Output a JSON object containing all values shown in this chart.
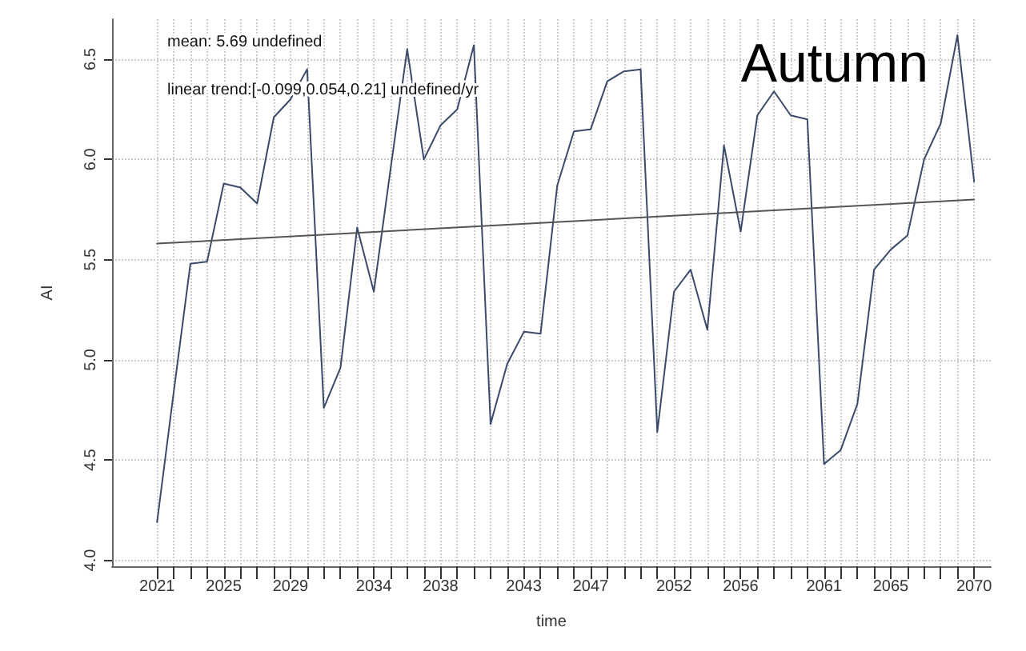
{
  "chart_data": {
    "type": "line",
    "title": "Autumn",
    "xlabel": "time",
    "ylabel": "AI",
    "annotations": [
      "mean: 5.69 undefined",
      "linear trend:[-0.099,0.054,0.21] undefined/yr"
    ],
    "x": [
      2021,
      2022,
      2023,
      2024,
      2025,
      2026,
      2027,
      2028,
      2029,
      2030,
      2031,
      2032,
      2033,
      2034,
      2035,
      2036,
      2037,
      2038,
      2039,
      2040,
      2041,
      2042,
      2043,
      2044,
      2045,
      2046,
      2047,
      2048,
      2049,
      2050,
      2051,
      2052,
      2053,
      2054,
      2055,
      2056,
      2057,
      2058,
      2059,
      2060,
      2061,
      2062,
      2063,
      2064,
      2065,
      2066,
      2067,
      2068,
      2069,
      2070
    ],
    "series": [
      {
        "color": "#3b4a6b",
        "values": [
          4.19,
          4.84,
          5.48,
          5.49,
          5.88,
          5.86,
          5.78,
          6.21,
          6.3,
          6.45,
          4.76,
          4.96,
          5.66,
          5.34,
          5.95,
          6.55,
          6.0,
          6.17,
          6.25,
          6.57,
          4.68,
          4.98,
          5.14,
          5.13,
          5.87,
          6.14,
          6.15,
          6.39,
          6.44,
          6.45,
          4.64,
          5.34,
          5.45,
          5.15,
          6.07,
          5.64,
          6.22,
          6.34,
          6.22,
          6.2,
          4.48,
          4.55,
          4.78,
          5.45,
          5.55,
          5.62,
          6.0,
          6.18,
          6.62,
          5.89
        ]
      },
      {
        "type": "line",
        "color": "#555555",
        "x": [
          2021,
          2070
        ],
        "values": [
          5.58,
          5.8
        ]
      }
    ],
    "xlim": [
      2018.3,
      2071
    ],
    "ylim": [
      3.97,
      6.7
    ],
    "xticks": [
      2021,
      {
        "value": 2022,
        "label": null
      },
      {
        "value": 2023,
        "label": null
      },
      {
        "value": 2024,
        "label": null
      },
      2025,
      {
        "value": 2026,
        "label": null
      },
      {
        "value": 2027,
        "label": null
      },
      {
        "value": 2028,
        "label": null
      },
      2029,
      {
        "value": 2030,
        "label": null
      },
      {
        "value": 2031,
        "label": null
      },
      {
        "value": 2032,
        "label": null
      },
      {
        "value": 2033,
        "label": null
      },
      2034,
      {
        "value": 2035,
        "label": null
      },
      {
        "value": 2036,
        "label": null
      },
      {
        "value": 2037,
        "label": null
      },
      2038,
      {
        "value": 2039,
        "label": null
      },
      {
        "value": 2040,
        "label": null
      },
      {
        "value": 2041,
        "label": null
      },
      {
        "value": 2042,
        "label": null
      },
      2043,
      {
        "value": 2044,
        "label": null
      },
      {
        "value": 2045,
        "label": null
      },
      {
        "value": 2046,
        "label": null
      },
      2047,
      {
        "value": 2048,
        "label": null
      },
      {
        "value": 2049,
        "label": null
      },
      {
        "value": 2050,
        "label": null
      },
      {
        "value": 2051,
        "label": null
      },
      2052,
      {
        "value": 2053,
        "label": null
      },
      {
        "value": 2054,
        "label": null
      },
      {
        "value": 2055,
        "label": null
      },
      2056,
      {
        "value": 2057,
        "label": null
      },
      {
        "value": 2058,
        "label": null
      },
      {
        "value": 2059,
        "label": null
      },
      {
        "value": 2060,
        "label": null
      },
      2061,
      {
        "value": 2062,
        "label": null
      },
      {
        "value": 2063,
        "label": null
      },
      {
        "value": 2064,
        "label": null
      },
      2065,
      {
        "value": 2066,
        "label": null
      },
      {
        "value": 2067,
        "label": null
      },
      {
        "value": 2068,
        "label": null
      },
      {
        "value": 2069,
        "label": null
      },
      2070
    ],
    "yticks": [
      {
        "value": 4,
        "label": "4.0"
      },
      {
        "value": 4.5,
        "label": "4.5"
      },
      {
        "value": 5,
        "label": "5.0"
      },
      {
        "value": 5.5,
        "label": "5.5"
      },
      {
        "value": 6,
        "label": "6.0"
      },
      {
        "value": 6.5,
        "label": "6.5"
      }
    ],
    "grid": true,
    "marker": "none",
    "line_style": "solid"
  }
}
